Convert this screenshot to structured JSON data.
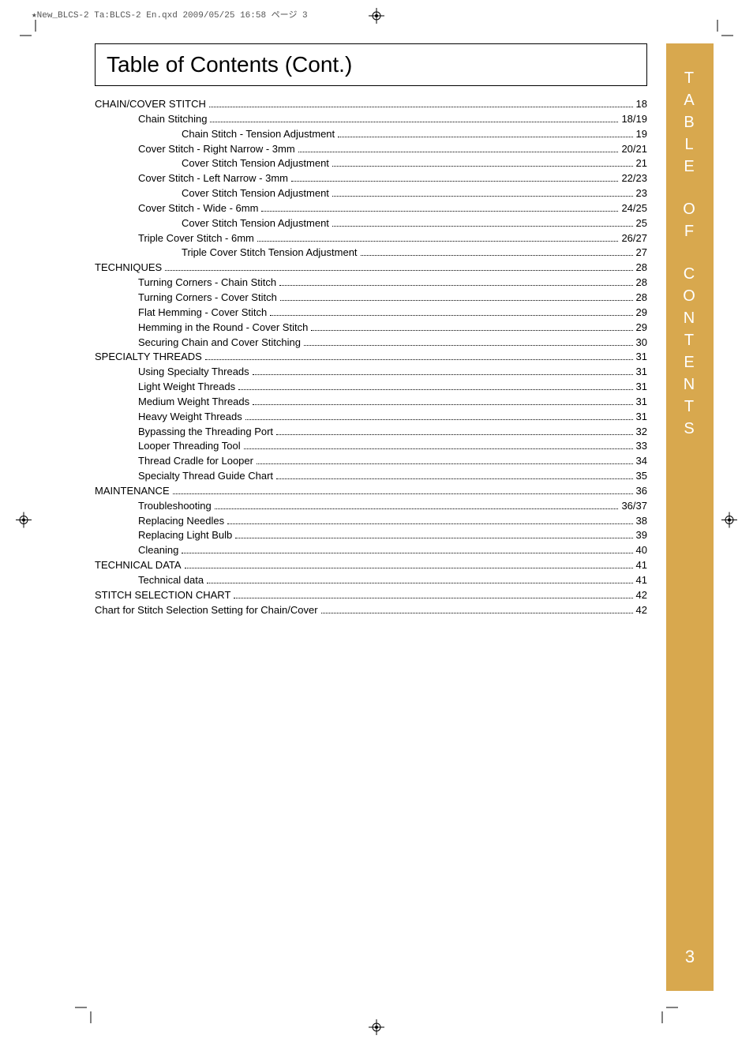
{
  "meta": {
    "header": "★New_BLCS-2 Ta:BLCS-2 En.qxd  2009/05/25  16:58  ページ 3"
  },
  "title": "Table of Contents (Cont.)",
  "sidebar": {
    "words": [
      "TABLE",
      "OF",
      "CONTENTS"
    ],
    "page_number": "3",
    "bg_color": "#d8a84e",
    "text_color": "#ffffff"
  },
  "toc": [
    {
      "label": "CHAIN/COVER STITCH ",
      "page": "18",
      "indent": 0
    },
    {
      "label": "Chain Stitching",
      "page": "18/19",
      "indent": 1
    },
    {
      "label": "Chain Stitch - Tension Adjustment",
      "page": " 19",
      "indent": 2
    },
    {
      "label": "Cover Stitch - Right Narrow - 3mm",
      "page": " 20/21",
      "indent": 1
    },
    {
      "label": "Cover Stitch Tension Adjustment",
      "page": "21",
      "indent": 2
    },
    {
      "label": "Cover Stitch - Left Narrow - 3mm ",
      "page": "22/23",
      "indent": 1
    },
    {
      "label": "Cover Stitch Tension Adjustment",
      "page": "23",
      "indent": 2
    },
    {
      "label": "Cover Stitch - Wide - 6mm",
      "page": "24/25",
      "indent": 1
    },
    {
      "label": "Cover Stitch Tension Adjustment",
      "page": "25",
      "indent": 2
    },
    {
      "label": "Triple Cover Stitch - 6mm ",
      "page": "26/27",
      "indent": 1
    },
    {
      "label": "Triple Cover Stitch Tension Adjustment",
      "page": "27",
      "indent": 2
    },
    {
      "label": "TECHNIQUES",
      "page": "28",
      "indent": 0
    },
    {
      "label": "Turning Corners - Chain Stitch ",
      "page": "28",
      "indent": 1
    },
    {
      "label": "Turning Corners - Cover Stitch ",
      "page": "28",
      "indent": 1
    },
    {
      "label": "Flat Hemming - Cover Stitch",
      "page": "29",
      "indent": 1
    },
    {
      "label": "Hemming in the Round - Cover Stitch ",
      "page": "29",
      "indent": 1
    },
    {
      "label": "Securing Chain and Cover Stitching",
      "page": "30",
      "indent": 1
    },
    {
      "label": "SPECIALTY THREADS",
      "page": "31",
      "indent": 0
    },
    {
      "label": "Using Specialty Threads",
      "page": "31",
      "indent": 1
    },
    {
      "label": "Light Weight Threads",
      "page": "31",
      "indent": 1
    },
    {
      "label": "Medium Weight Threads",
      "page": "31",
      "indent": 1
    },
    {
      "label": "Heavy Weight Threads ",
      "page": "31",
      "indent": 1
    },
    {
      "label": "Bypassing the Threading Port ",
      "page": "32",
      "indent": 1
    },
    {
      "label": "Looper Threading Tool",
      "page": "33",
      "indent": 1
    },
    {
      "label": "Thread Cradle for Looper ",
      "page": "34",
      "indent": 1
    },
    {
      "label": "Specialty Thread Guide Chart ",
      "page": "35",
      "indent": 1
    },
    {
      "label": "MAINTENANCE ",
      "page": "36",
      "indent": 0
    },
    {
      "label": "Troubleshooting ",
      "page": "36/37",
      "indent": 1
    },
    {
      "label": "Replacing Needles ",
      "page": "38",
      "indent": 1
    },
    {
      "label": "Replacing Light Bulb",
      "page": "39",
      "indent": 1
    },
    {
      "label": "Cleaning ",
      "page": "40",
      "indent": 1
    },
    {
      "label": "TECHNICAL DATA",
      "page": "41",
      "indent": 0
    },
    {
      "label": "Technical data",
      "page": "41",
      "indent": 1
    },
    {
      "label": "STITCH SELECTION CHART",
      "page": "42",
      "indent": 0
    },
    {
      "label": "Chart for Stitch Selection Setting for Chain/Cover  ",
      "page": "42",
      "indent": 0
    }
  ]
}
